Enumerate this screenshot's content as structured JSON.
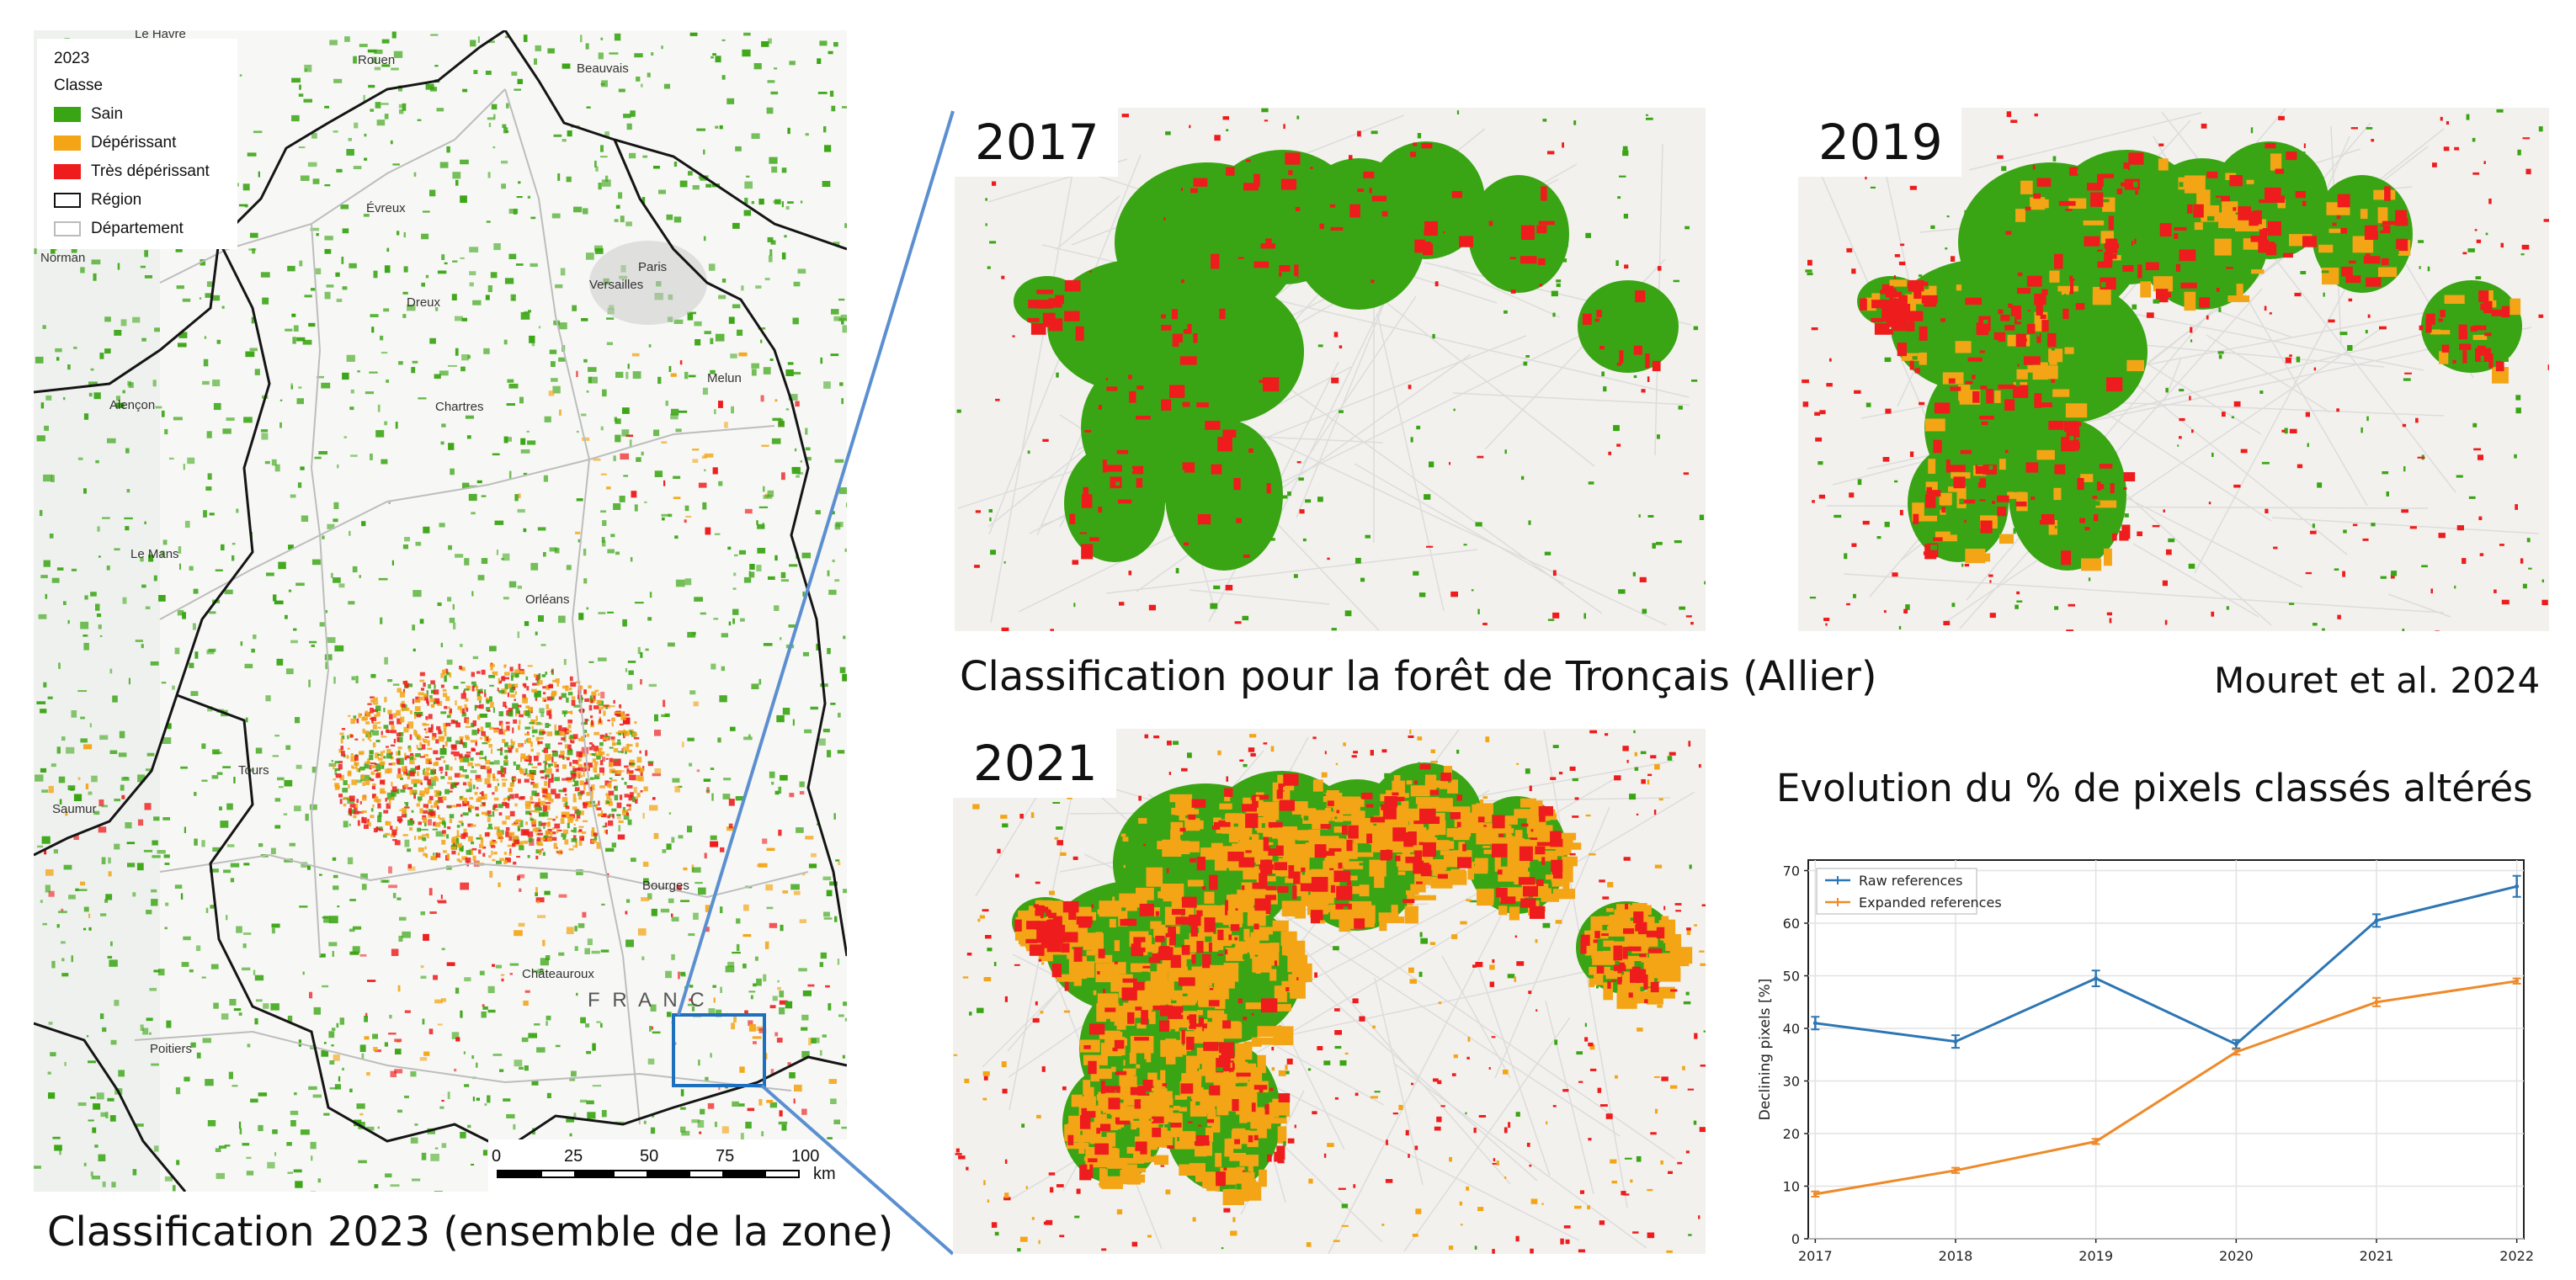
{
  "colors": {
    "sain": "#3aa514",
    "deperissant": "#f3a516",
    "tres_deperissant": "#ee1c1c",
    "region": "#111111",
    "departement": "#cfcfcf",
    "connector": "#5b8fd0",
    "raw_series": "#2d76b4",
    "expanded_series": "#ee8a2a"
  },
  "legend": {
    "title": "2023",
    "subtitle": "Classe",
    "items": [
      {
        "label": "Sain",
        "color": "#3aa514"
      },
      {
        "label": "Dépérissant",
        "color": "#f3a516"
      },
      {
        "label": "Très dépérissant",
        "color": "#ee1c1c"
      },
      {
        "label": "Région",
        "color": "none"
      },
      {
        "label": "Département",
        "color": "none"
      }
    ]
  },
  "map_labels": {
    "le_havre": "Le Havre",
    "rouen": "Rouen",
    "beauvais": "Beauvais",
    "paris": "Paris",
    "versailles": "Versailles",
    "evreux": "Évreux",
    "dreux": "Dreux",
    "chartres": "Chartres",
    "melun": "Melun",
    "alencon": "Alençon",
    "le_mans": "Le Mans",
    "orleans": "Orléans",
    "tours": "Tours",
    "saumur": "Saumur",
    "bourges": "Bourges",
    "chateauroux": "Châteauroux",
    "poitiers": "Poitiers",
    "france": "F R A N C",
    "normandie": "Norman"
  },
  "scale_bar": {
    "ticks": [
      "0",
      "25",
      "50",
      "75",
      "100"
    ],
    "unit": "km"
  },
  "panels": {
    "p2017": {
      "year": "2017"
    },
    "p2019": {
      "year": "2019"
    },
    "p2021": {
      "year": "2021"
    }
  },
  "captions": {
    "left": "Classification 2023 (ensemble de la zone)",
    "middle": "Classification pour la forêt de Tronçais (Allier)",
    "citation": "Mouret et al. 2024",
    "chart": "Evolution du % de pixels classés altérés"
  },
  "chart_data": {
    "type": "line",
    "title": "Evolution du % de pixels classés altérés",
    "xlabel": "",
    "ylabel": "Declining pixels [%]",
    "x": [
      2017,
      2018,
      2019,
      2020,
      2021,
      2022
    ],
    "x_ticks": [
      "2017",
      "2018",
      "2019",
      "2020",
      "2021",
      "2022"
    ],
    "y_ticks": [
      "0",
      "10",
      "20",
      "30",
      "40",
      "50",
      "60",
      "70"
    ],
    "ylim": [
      0,
      72
    ],
    "grid": true,
    "legend_position": "top-left",
    "series": [
      {
        "name": "Raw references",
        "color": "#2d76b4",
        "values": [
          41,
          37.5,
          49.5,
          37,
          60.5,
          67
        ],
        "error": [
          1.2,
          1.2,
          1.5,
          0.8,
          1.2,
          2
        ]
      },
      {
        "name": "Expanded references",
        "color": "#ee8a2a",
        "values": [
          8.5,
          13,
          18.5,
          35.5,
          45,
          49
        ],
        "error": [
          0.5,
          0.5,
          0.5,
          0.5,
          0.8,
          0.5
        ]
      }
    ]
  }
}
